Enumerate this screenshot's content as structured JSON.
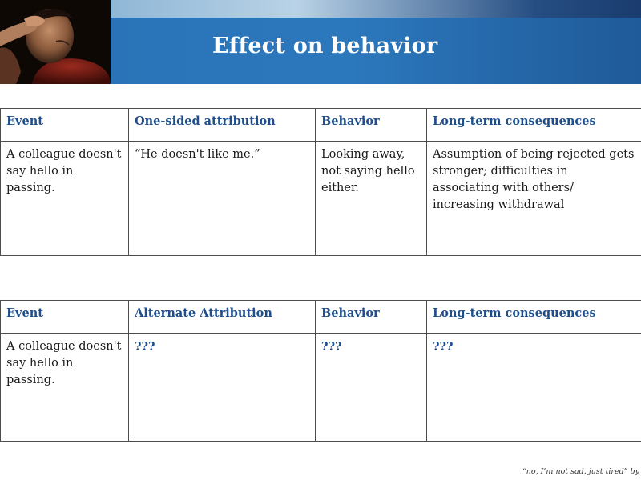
{
  "slide": {
    "title": "Effect on behavior",
    "photo_credit": "“no, I’m not sad. just tired” by"
  },
  "table1": {
    "headers": [
      "Event",
      "One-sided attribution",
      "Behavior",
      "Long-term consequences"
    ],
    "row": [
      "A colleague doesn't say hello in passing.",
      "“He doesn't like me.”",
      "Looking away, not saying hello either.",
      "Assumption of being rejected gets stronger; difficulties in associating with others/ increasing withdrawal"
    ]
  },
  "table2": {
    "headers": [
      "Event",
      "Alternate Attribution",
      "Behavior",
      "Long-term consequences"
    ],
    "row": [
      "A colleague doesn't say hello in passing.",
      "???",
      "???",
      "???"
    ]
  },
  "colors": {
    "header_text": "#1f4e8c",
    "banner": "#2a73b8",
    "border": "#4d4d4d"
  }
}
